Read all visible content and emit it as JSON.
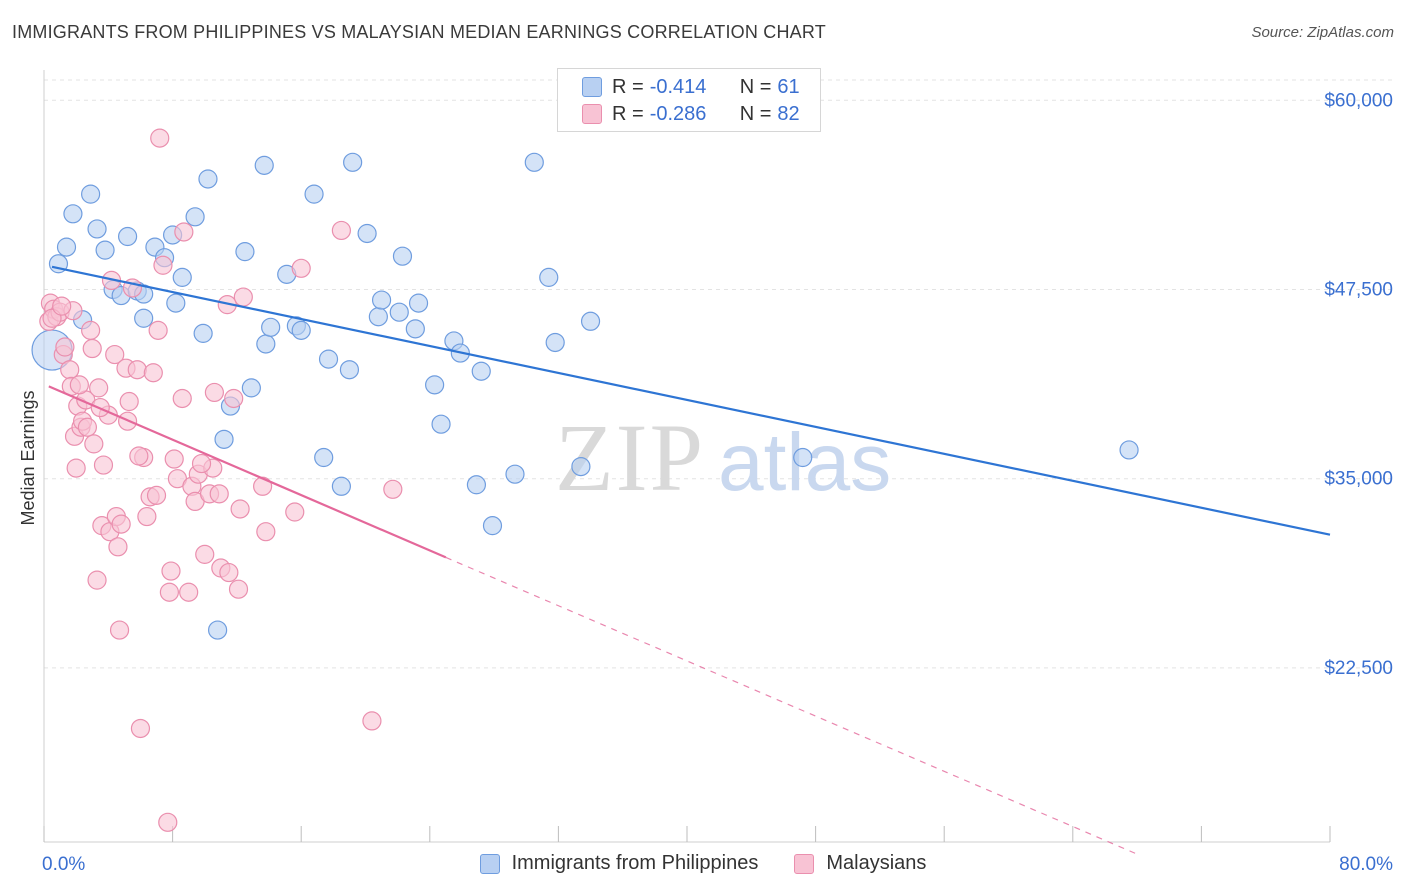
{
  "header": {
    "title": "IMMIGRANTS FROM PHILIPPINES VS MALAYSIAN MEDIAN EARNINGS CORRELATION CHART",
    "source": "Source: ZipAtlas.com"
  },
  "legend_box": {
    "rows": [
      {
        "r_label": "R =",
        "r_value": "-0.414",
        "n_label": "N =",
        "n_value": "61"
      },
      {
        "r_label": "R =",
        "r_value": "-0.286",
        "n_label": "N =",
        "n_value": "82"
      }
    ]
  },
  "bottom_legend": {
    "items": [
      "Immigrants from Philippines",
      "Malaysians"
    ]
  },
  "colors": {
    "blue_fill": "#b8d0f2",
    "blue_stroke": "#6f9ddf",
    "blue_line": "#2e75d4",
    "pink_fill": "#f8c3d4",
    "pink_stroke": "#ea8fae",
    "pink_line": "#e4689a",
    "axis_text": "#3a6fd0",
    "grid": "#e3e3e3"
  },
  "chart_data": {
    "type": "scatter",
    "title": "IMMIGRANTS FROM PHILIPPINES VS MALAYSIAN MEDIAN EARNINGS CORRELATION CHART",
    "xlabel": "",
    "ylabel": "Median Earnings",
    "xlim": [
      0,
      80
    ],
    "ylim": [
      11000,
      62000
    ],
    "x_tick_labels": [
      "0.0%",
      "80.0%"
    ],
    "y_ticks": [
      22500,
      35000,
      47500,
      60000
    ],
    "y_tick_labels": [
      "$22,500",
      "$35,000",
      "$47,500",
      "$60,000"
    ],
    "watermark": {
      "zip": "ZIP",
      "atlas": "atlas"
    },
    "series": [
      {
        "name": "Immigrants from Philippines",
        "color_key": "blue",
        "r": -0.414,
        "n": 61,
        "trend": {
          "x": [
            0.5,
            80
          ],
          "y": [
            49000,
            31300
          ]
        },
        "points": [
          [
            0.5,
            43500
          ],
          [
            0.9,
            49200
          ],
          [
            1.4,
            50300
          ],
          [
            1.8,
            52500
          ],
          [
            2.4,
            45500
          ],
          [
            2.9,
            53800
          ],
          [
            3.3,
            51500
          ],
          [
            3.8,
            50100
          ],
          [
            4.3,
            47500
          ],
          [
            4.8,
            47100
          ],
          [
            5.2,
            51000
          ],
          [
            5.8,
            47400
          ],
          [
            6.2,
            45600
          ],
          [
            6.9,
            50300
          ],
          [
            7.5,
            49600
          ],
          [
            8.0,
            51100
          ],
          [
            8.2,
            46600
          ],
          [
            8.6,
            48300
          ],
          [
            9.4,
            52300
          ],
          [
            9.9,
            44600
          ],
          [
            10.2,
            54800
          ],
          [
            11.2,
            37600
          ],
          [
            11.6,
            39800
          ],
          [
            12.5,
            50000
          ],
          [
            12.9,
            41000
          ],
          [
            13.7,
            55700
          ],
          [
            13.8,
            43900
          ],
          [
            14.1,
            45000
          ],
          [
            15.1,
            48500
          ],
          [
            15.7,
            45100
          ],
          [
            16.0,
            44800
          ],
          [
            16.8,
            53800
          ],
          [
            17.4,
            36400
          ],
          [
            17.7,
            42900
          ],
          [
            18.5,
            34500
          ],
          [
            19.0,
            42200
          ],
          [
            19.2,
            55900
          ],
          [
            20.1,
            51200
          ],
          [
            20.8,
            45700
          ],
          [
            21.0,
            46800
          ],
          [
            22.1,
            46000
          ],
          [
            22.3,
            49700
          ],
          [
            23.1,
            44900
          ],
          [
            23.3,
            46600
          ],
          [
            24.3,
            41200
          ],
          [
            24.7,
            38600
          ],
          [
            25.5,
            44100
          ],
          [
            25.9,
            43300
          ],
          [
            26.9,
            34600
          ],
          [
            27.2,
            42100
          ],
          [
            27.9,
            31900
          ],
          [
            29.3,
            35300
          ],
          [
            30.5,
            55900
          ],
          [
            31.4,
            48300
          ],
          [
            31.8,
            44000
          ],
          [
            33.4,
            35800
          ],
          [
            34.0,
            45400
          ],
          [
            47.2,
            36400
          ],
          [
            67.5,
            36900
          ],
          [
            10.8,
            25000
          ],
          [
            6.2,
            47200
          ]
        ]
      },
      {
        "name": "Malaysians",
        "color_key": "pink",
        "r": -0.286,
        "n": 82,
        "trend": {
          "x": [
            0.3,
            25
          ],
          "y": [
            41100,
            29800
          ]
        },
        "trend_dashed": {
          "x": [
            25,
            68
          ],
          "y": [
            29800,
            10200
          ]
        },
        "points": [
          [
            0.3,
            45400
          ],
          [
            0.4,
            46600
          ],
          [
            0.6,
            46200
          ],
          [
            0.8,
            45700
          ],
          [
            1.0,
            46000
          ],
          [
            1.2,
            43200
          ],
          [
            1.3,
            43700
          ],
          [
            1.6,
            42200
          ],
          [
            1.7,
            41100
          ],
          [
            1.8,
            46100
          ],
          [
            1.9,
            37800
          ],
          [
            2.0,
            35700
          ],
          [
            2.1,
            39800
          ],
          [
            2.3,
            38400
          ],
          [
            2.4,
            38800
          ],
          [
            2.6,
            40200
          ],
          [
            2.7,
            38400
          ],
          [
            2.9,
            44800
          ],
          [
            3.0,
            43600
          ],
          [
            3.1,
            37300
          ],
          [
            3.3,
            28300
          ],
          [
            3.4,
            41000
          ],
          [
            3.6,
            31900
          ],
          [
            3.7,
            35900
          ],
          [
            4.0,
            39200
          ],
          [
            4.1,
            31500
          ],
          [
            4.2,
            48100
          ],
          [
            4.4,
            43200
          ],
          [
            4.5,
            32500
          ],
          [
            4.6,
            30500
          ],
          [
            4.7,
            25000
          ],
          [
            4.8,
            32000
          ],
          [
            5.1,
            42300
          ],
          [
            5.2,
            38800
          ],
          [
            5.3,
            40100
          ],
          [
            5.5,
            47600
          ],
          [
            5.8,
            42200
          ],
          [
            6.0,
            18500
          ],
          [
            6.2,
            36400
          ],
          [
            6.4,
            32500
          ],
          [
            6.6,
            33800
          ],
          [
            7.1,
            44800
          ],
          [
            7.2,
            57500
          ],
          [
            7.4,
            49100
          ],
          [
            7.7,
            12300
          ],
          [
            7.8,
            27500
          ],
          [
            7.9,
            28900
          ],
          [
            8.1,
            36300
          ],
          [
            8.3,
            35000
          ],
          [
            8.6,
            40300
          ],
          [
            8.7,
            51300
          ],
          [
            9.0,
            27500
          ],
          [
            9.2,
            34500
          ],
          [
            9.4,
            33500
          ],
          [
            9.6,
            35300
          ],
          [
            10.0,
            30000
          ],
          [
            10.3,
            34000
          ],
          [
            10.5,
            35700
          ],
          [
            10.6,
            40700
          ],
          [
            10.9,
            34000
          ],
          [
            11.0,
            29100
          ],
          [
            11.4,
            46500
          ],
          [
            11.5,
            28800
          ],
          [
            11.8,
            40300
          ],
          [
            12.1,
            27700
          ],
          [
            12.2,
            33000
          ],
          [
            12.4,
            47000
          ],
          [
            13.6,
            34500
          ],
          [
            13.8,
            31500
          ],
          [
            15.6,
            32800
          ],
          [
            16.0,
            48900
          ],
          [
            18.5,
            51400
          ],
          [
            20.4,
            19000
          ],
          [
            21.7,
            34300
          ],
          [
            0.5,
            45600
          ],
          [
            1.1,
            46400
          ],
          [
            2.2,
            41200
          ],
          [
            3.5,
            39700
          ],
          [
            6.8,
            42000
          ],
          [
            9.8,
            36000
          ],
          [
            7.0,
            33900
          ],
          [
            5.9,
            36500
          ]
        ]
      }
    ]
  }
}
